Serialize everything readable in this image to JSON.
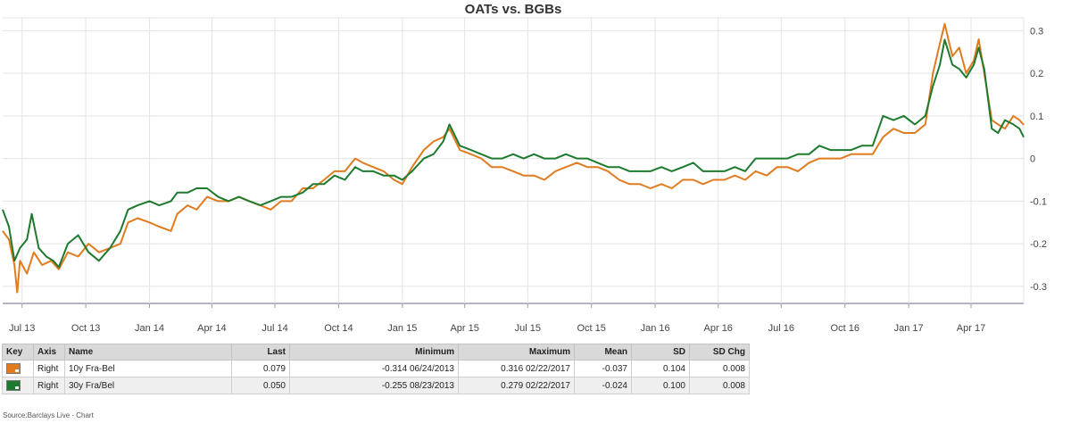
{
  "chart_data": {
    "type": "line",
    "title": "OATs vs. BGBs",
    "y_axis_side": "right",
    "ylim": [
      -0.34,
      0.33
    ],
    "yticks": [
      0.3,
      0.2,
      0.1,
      0,
      -0.1,
      -0.2,
      -0.3
    ],
    "ytick_labels": [
      "0.3",
      "0.2",
      "0.1",
      "0",
      "-0.1",
      "-0.2",
      "-0.3"
    ],
    "xlim": [
      "2013-06-03",
      "2017-06-16"
    ],
    "xticks": [
      {
        "date": "2013-07-01",
        "label": "Jul 13"
      },
      {
        "date": "2013-10-01",
        "label": "Oct 13"
      },
      {
        "date": "2014-01-01",
        "label": "Jan 14"
      },
      {
        "date": "2014-04-01",
        "label": "Apr 14"
      },
      {
        "date": "2014-07-01",
        "label": "Jul 14"
      },
      {
        "date": "2014-10-01",
        "label": "Oct 14"
      },
      {
        "date": "2015-01-01",
        "label": "Jan 15"
      },
      {
        "date": "2015-04-01",
        "label": "Apr 15"
      },
      {
        "date": "2015-07-01",
        "label": "Jul 15"
      },
      {
        "date": "2015-10-01",
        "label": "Oct 15"
      },
      {
        "date": "2016-01-01",
        "label": "Jan 16"
      },
      {
        "date": "2016-04-01",
        "label": "Apr 16"
      },
      {
        "date": "2016-07-01",
        "label": "Jul 16"
      },
      {
        "date": "2016-10-01",
        "label": "Oct 16"
      },
      {
        "date": "2017-01-01",
        "label": "Jan 17"
      },
      {
        "date": "2017-04-01",
        "label": "Apr 17"
      }
    ],
    "grid": true,
    "series": [
      {
        "name": "10y Fra-Bel",
        "color": "#e07b1f",
        "points": [
          [
            "2013-06-03",
            -0.17
          ],
          [
            "2013-06-12",
            -0.19
          ],
          [
            "2013-06-20",
            -0.25
          ],
          [
            "2013-06-24",
            -0.314
          ],
          [
            "2013-06-28",
            -0.24
          ],
          [
            "2013-07-08",
            -0.27
          ],
          [
            "2013-07-18",
            -0.22
          ],
          [
            "2013-07-30",
            -0.25
          ],
          [
            "2013-08-12",
            -0.24
          ],
          [
            "2013-08-23",
            -0.26
          ],
          [
            "2013-09-05",
            -0.22
          ],
          [
            "2013-09-20",
            -0.23
          ],
          [
            "2013-10-05",
            -0.2
          ],
          [
            "2013-10-20",
            -0.22
          ],
          [
            "2013-11-05",
            -0.21
          ],
          [
            "2013-11-20",
            -0.2
          ],
          [
            "2013-12-01",
            -0.15
          ],
          [
            "2013-12-15",
            -0.14
          ],
          [
            "2014-01-01",
            -0.15
          ],
          [
            "2014-01-15",
            -0.16
          ],
          [
            "2014-02-01",
            -0.17
          ],
          [
            "2014-02-10",
            -0.13
          ],
          [
            "2014-02-25",
            -0.11
          ],
          [
            "2014-03-10",
            -0.12
          ],
          [
            "2014-03-25",
            -0.09
          ],
          [
            "2014-04-10",
            -0.1
          ],
          [
            "2014-04-25",
            -0.1
          ],
          [
            "2014-05-10",
            -0.09
          ],
          [
            "2014-05-25",
            -0.1
          ],
          [
            "2014-06-10",
            -0.11
          ],
          [
            "2014-06-25",
            -0.12
          ],
          [
            "2014-07-10",
            -0.1
          ],
          [
            "2014-07-25",
            -0.1
          ],
          [
            "2014-08-10",
            -0.07
          ],
          [
            "2014-08-25",
            -0.07
          ],
          [
            "2014-09-10",
            -0.05
          ],
          [
            "2014-09-25",
            -0.03
          ],
          [
            "2014-10-10",
            -0.03
          ],
          [
            "2014-10-25",
            0.0
          ],
          [
            "2014-11-05",
            -0.01
          ],
          [
            "2014-11-20",
            -0.02
          ],
          [
            "2014-12-05",
            -0.03
          ],
          [
            "2014-12-20",
            -0.05
          ],
          [
            "2015-01-01",
            -0.06
          ],
          [
            "2015-01-15",
            -0.02
          ],
          [
            "2015-02-01",
            0.02
          ],
          [
            "2015-02-15",
            0.04
          ],
          [
            "2015-03-01",
            0.05
          ],
          [
            "2015-03-10",
            0.07
          ],
          [
            "2015-03-25",
            0.02
          ],
          [
            "2015-04-10",
            0.01
          ],
          [
            "2015-04-25",
            0.0
          ],
          [
            "2015-05-10",
            -0.02
          ],
          [
            "2015-05-25",
            -0.02
          ],
          [
            "2015-06-10",
            -0.03
          ],
          [
            "2015-06-25",
            -0.04
          ],
          [
            "2015-07-10",
            -0.04
          ],
          [
            "2015-07-25",
            -0.05
          ],
          [
            "2015-08-10",
            -0.03
          ],
          [
            "2015-08-25",
            -0.02
          ],
          [
            "2015-09-10",
            -0.01
          ],
          [
            "2015-09-25",
            -0.02
          ],
          [
            "2015-10-10",
            -0.02
          ],
          [
            "2015-10-25",
            -0.03
          ],
          [
            "2015-11-10",
            -0.05
          ],
          [
            "2015-11-25",
            -0.06
          ],
          [
            "2015-12-10",
            -0.06
          ],
          [
            "2015-12-25",
            -0.07
          ],
          [
            "2016-01-10",
            -0.06
          ],
          [
            "2016-01-25",
            -0.07
          ],
          [
            "2016-02-10",
            -0.05
          ],
          [
            "2016-02-25",
            -0.05
          ],
          [
            "2016-03-10",
            -0.06
          ],
          [
            "2016-03-25",
            -0.05
          ],
          [
            "2016-04-10",
            -0.05
          ],
          [
            "2016-04-25",
            -0.04
          ],
          [
            "2016-05-10",
            -0.05
          ],
          [
            "2016-05-25",
            -0.03
          ],
          [
            "2016-06-10",
            -0.04
          ],
          [
            "2016-06-25",
            -0.02
          ],
          [
            "2016-07-10",
            -0.02
          ],
          [
            "2016-07-25",
            -0.03
          ],
          [
            "2016-08-10",
            -0.01
          ],
          [
            "2016-08-25",
            0.0
          ],
          [
            "2016-09-10",
            0.0
          ],
          [
            "2016-09-25",
            0.0
          ],
          [
            "2016-10-10",
            0.01
          ],
          [
            "2016-10-25",
            0.01
          ],
          [
            "2016-11-10",
            0.01
          ],
          [
            "2016-11-25",
            0.05
          ],
          [
            "2016-12-10",
            0.07
          ],
          [
            "2016-12-25",
            0.06
          ],
          [
            "2017-01-10",
            0.06
          ],
          [
            "2017-01-25",
            0.08
          ],
          [
            "2017-02-05",
            0.2
          ],
          [
            "2017-02-15",
            0.27
          ],
          [
            "2017-02-22",
            0.316
          ],
          [
            "2017-03-05",
            0.24
          ],
          [
            "2017-03-15",
            0.26
          ],
          [
            "2017-03-25",
            0.2
          ],
          [
            "2017-04-05",
            0.23
          ],
          [
            "2017-04-12",
            0.28
          ],
          [
            "2017-04-20",
            0.2
          ],
          [
            "2017-05-01",
            0.09
          ],
          [
            "2017-05-10",
            0.08
          ],
          [
            "2017-05-20",
            0.07
          ],
          [
            "2017-06-01",
            0.1
          ],
          [
            "2017-06-10",
            0.09
          ],
          [
            "2017-06-16",
            0.079
          ]
        ]
      },
      {
        "name": "30y Fra/Bel",
        "color": "#1e7a2e",
        "points": [
          [
            "2013-06-03",
            -0.12
          ],
          [
            "2013-06-12",
            -0.16
          ],
          [
            "2013-06-20",
            -0.24
          ],
          [
            "2013-06-28",
            -0.21
          ],
          [
            "2013-07-08",
            -0.19
          ],
          [
            "2013-07-15",
            -0.13
          ],
          [
            "2013-07-25",
            -0.21
          ],
          [
            "2013-08-05",
            -0.23
          ],
          [
            "2013-08-15",
            -0.24
          ],
          [
            "2013-08-23",
            -0.255
          ],
          [
            "2013-09-05",
            -0.2
          ],
          [
            "2013-09-20",
            -0.18
          ],
          [
            "2013-10-05",
            -0.22
          ],
          [
            "2013-10-20",
            -0.24
          ],
          [
            "2013-11-05",
            -0.21
          ],
          [
            "2013-11-20",
            -0.17
          ],
          [
            "2013-12-01",
            -0.12
          ],
          [
            "2013-12-15",
            -0.11
          ],
          [
            "2014-01-01",
            -0.1
          ],
          [
            "2014-01-15",
            -0.11
          ],
          [
            "2014-02-01",
            -0.1
          ],
          [
            "2014-02-10",
            -0.08
          ],
          [
            "2014-02-25",
            -0.08
          ],
          [
            "2014-03-10",
            -0.07
          ],
          [
            "2014-03-25",
            -0.07
          ],
          [
            "2014-04-10",
            -0.09
          ],
          [
            "2014-04-25",
            -0.1
          ],
          [
            "2014-05-10",
            -0.09
          ],
          [
            "2014-05-25",
            -0.1
          ],
          [
            "2014-06-10",
            -0.11
          ],
          [
            "2014-06-25",
            -0.1
          ],
          [
            "2014-07-10",
            -0.09
          ],
          [
            "2014-07-25",
            -0.09
          ],
          [
            "2014-08-10",
            -0.08
          ],
          [
            "2014-08-25",
            -0.06
          ],
          [
            "2014-09-10",
            -0.06
          ],
          [
            "2014-09-25",
            -0.04
          ],
          [
            "2014-10-10",
            -0.05
          ],
          [
            "2014-10-25",
            -0.02
          ],
          [
            "2014-11-05",
            -0.03
          ],
          [
            "2014-11-20",
            -0.03
          ],
          [
            "2014-12-05",
            -0.04
          ],
          [
            "2014-12-20",
            -0.04
          ],
          [
            "2015-01-01",
            -0.05
          ],
          [
            "2015-01-15",
            -0.03
          ],
          [
            "2015-02-01",
            0.0
          ],
          [
            "2015-02-15",
            0.01
          ],
          [
            "2015-03-01",
            0.04
          ],
          [
            "2015-03-10",
            0.08
          ],
          [
            "2015-03-25",
            0.03
          ],
          [
            "2015-04-10",
            0.02
          ],
          [
            "2015-04-25",
            0.01
          ],
          [
            "2015-05-10",
            0.0
          ],
          [
            "2015-05-25",
            0.0
          ],
          [
            "2015-06-10",
            0.01
          ],
          [
            "2015-06-25",
            0.0
          ],
          [
            "2015-07-10",
            0.01
          ],
          [
            "2015-07-25",
            0.0
          ],
          [
            "2015-08-10",
            0.0
          ],
          [
            "2015-08-25",
            0.01
          ],
          [
            "2015-09-10",
            0.0
          ],
          [
            "2015-09-25",
            0.0
          ],
          [
            "2015-10-10",
            -0.01
          ],
          [
            "2015-10-25",
            -0.02
          ],
          [
            "2015-11-10",
            -0.02
          ],
          [
            "2015-11-25",
            -0.03
          ],
          [
            "2015-12-10",
            -0.03
          ],
          [
            "2015-12-25",
            -0.03
          ],
          [
            "2016-01-10",
            -0.02
          ],
          [
            "2016-01-25",
            -0.03
          ],
          [
            "2016-02-10",
            -0.02
          ],
          [
            "2016-02-25",
            -0.01
          ],
          [
            "2016-03-10",
            -0.03
          ],
          [
            "2016-03-25",
            -0.03
          ],
          [
            "2016-04-10",
            -0.03
          ],
          [
            "2016-04-25",
            -0.02
          ],
          [
            "2016-05-10",
            -0.03
          ],
          [
            "2016-05-25",
            0.0
          ],
          [
            "2016-06-10",
            0.0
          ],
          [
            "2016-06-25",
            0.0
          ],
          [
            "2016-07-10",
            0.0
          ],
          [
            "2016-07-25",
            0.01
          ],
          [
            "2016-08-10",
            0.01
          ],
          [
            "2016-08-25",
            0.03
          ],
          [
            "2016-09-10",
            0.02
          ],
          [
            "2016-09-25",
            0.02
          ],
          [
            "2016-10-10",
            0.02
          ],
          [
            "2016-10-25",
            0.03
          ],
          [
            "2016-11-10",
            0.03
          ],
          [
            "2016-11-25",
            0.1
          ],
          [
            "2016-12-10",
            0.09
          ],
          [
            "2016-12-25",
            0.1
          ],
          [
            "2017-01-10",
            0.08
          ],
          [
            "2017-01-25",
            0.1
          ],
          [
            "2017-02-05",
            0.17
          ],
          [
            "2017-02-15",
            0.22
          ],
          [
            "2017-02-22",
            0.279
          ],
          [
            "2017-03-05",
            0.22
          ],
          [
            "2017-03-15",
            0.21
          ],
          [
            "2017-03-25",
            0.19
          ],
          [
            "2017-04-05",
            0.22
          ],
          [
            "2017-04-12",
            0.26
          ],
          [
            "2017-04-20",
            0.21
          ],
          [
            "2017-05-01",
            0.07
          ],
          [
            "2017-05-10",
            0.06
          ],
          [
            "2017-05-20",
            0.09
          ],
          [
            "2017-06-01",
            0.08
          ],
          [
            "2017-06-10",
            0.07
          ],
          [
            "2017-06-16",
            0.05
          ]
        ]
      }
    ]
  },
  "table": {
    "headers": [
      "Key",
      "Axis",
      "Name",
      "Last",
      "Minimum",
      "Maximum",
      "Mean",
      "SD",
      "SD Chg"
    ],
    "rows": [
      {
        "color": "#e07b1f",
        "axis": "Right",
        "name": "10y Fra-Bel",
        "last": "0.079",
        "minimum": "-0.314 06/24/2013",
        "maximum": "0.316 02/22/2017",
        "mean": "-0.037",
        "sd": "0.104",
        "sd_chg": "0.008"
      },
      {
        "color": "#1e7a2e",
        "axis": "Right",
        "name": "30y Fra/Bel",
        "last": "0.050",
        "minimum": "-0.255 08/23/2013",
        "maximum": "0.279 02/22/2017",
        "mean": "-0.024",
        "sd": "0.100",
        "sd_chg": "0.008"
      }
    ]
  },
  "source": "Source:Barclays Live - Chart"
}
